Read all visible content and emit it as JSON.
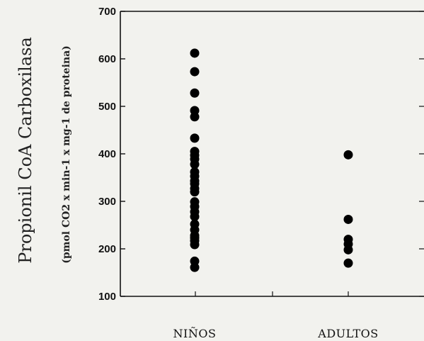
{
  "chart_data": {
    "type": "scatter",
    "title": "",
    "ylabel": "Propionil CoA Carboxilasa",
    "ylabel_units": "(pmol CO2 x min-1 x mg-1 de proteina)",
    "ylim": [
      100,
      700
    ],
    "yticks": [
      100,
      200,
      300,
      400,
      500,
      600,
      700
    ],
    "categories": [
      "NIÑOS",
      "ADULTOS"
    ],
    "grid": false,
    "series": [
      {
        "category": "NIÑOS",
        "values": [
          612,
          573,
          528,
          491,
          478,
          433,
          405,
          397,
          389,
          378,
          362,
          353,
          343,
          337,
          327,
          320,
          299,
          289,
          278,
          268,
          252,
          240,
          228,
          223,
          217,
          209,
          174,
          161
        ]
      },
      {
        "category": "ADULTOS",
        "values": [
          398,
          262,
          220,
          210,
          198,
          170
        ]
      }
    ],
    "marker_color": "#000000"
  }
}
